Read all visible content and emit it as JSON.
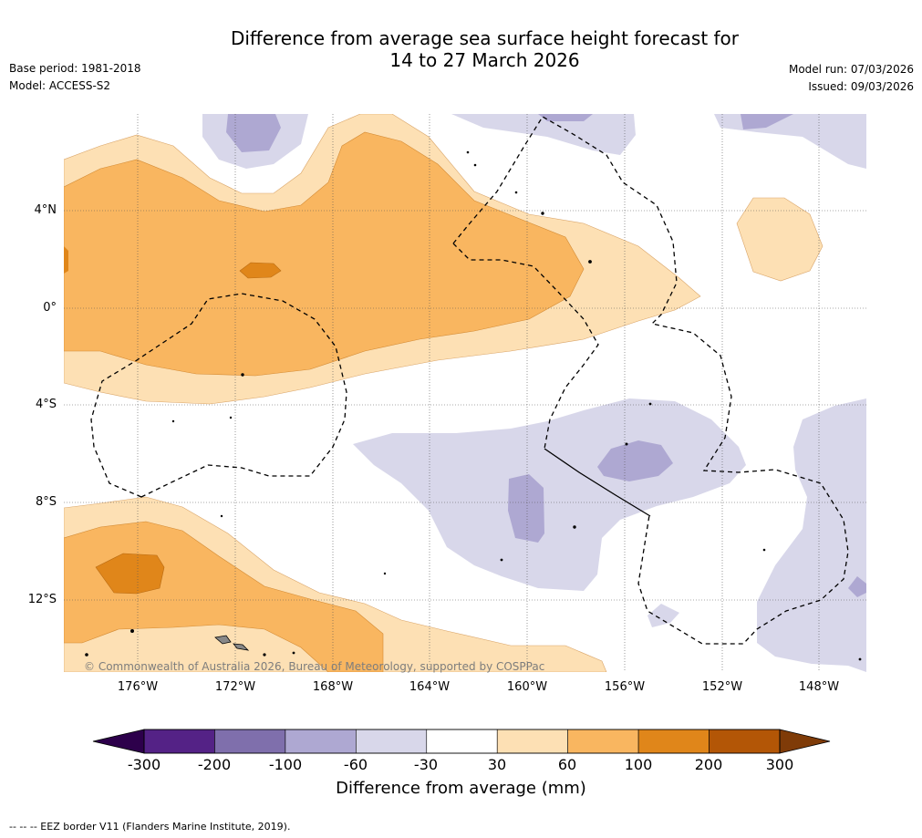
{
  "title": {
    "line1": "Difference from average sea surface height forecast for",
    "line2": "14 to 27 March 2026"
  },
  "meta": {
    "base_period": "Base period: 1981-2018",
    "model": "Model: ACCESS-S2",
    "model_run": "Model run: 07/03/2026",
    "issued": "Issued: 09/03/2026"
  },
  "map": {
    "lat_labels": [
      "4°N",
      "0°",
      "4°S",
      "8°S",
      "12°S"
    ],
    "lon_labels": [
      "176°W",
      "172°W",
      "168°W",
      "164°W",
      "160°W",
      "156°W",
      "152°W",
      "148°W"
    ],
    "copyright": "© Commonwealth of Australia 2026, Bureau of Meteorology, supported by COSPPac",
    "colors": {
      "pos_30_60": "#fde0b4",
      "pos_60_100": "#f9b660",
      "pos_100_200": "#e0861a",
      "neg_30_60": "#d8d7ea",
      "neg_60_100": "#aea8d2"
    }
  },
  "colorbar": {
    "ticks": [
      "-300",
      "-200",
      "-100",
      "-60",
      "-30",
      "30",
      "60",
      "100",
      "200",
      "300"
    ],
    "colors": [
      "#542286",
      "#7f6fac",
      "#aea8d2",
      "#d8d7ea",
      "#ffffff",
      "#fde0b4",
      "#f9b660",
      "#e0861a",
      "#b35606"
    ],
    "low_color": "#2d004b",
    "high_color": "#7f3b08",
    "label": "Difference from average (mm)"
  },
  "footer": "--  --  -- EEZ border V11 (Flanders Marine Institute, 2019)."
}
